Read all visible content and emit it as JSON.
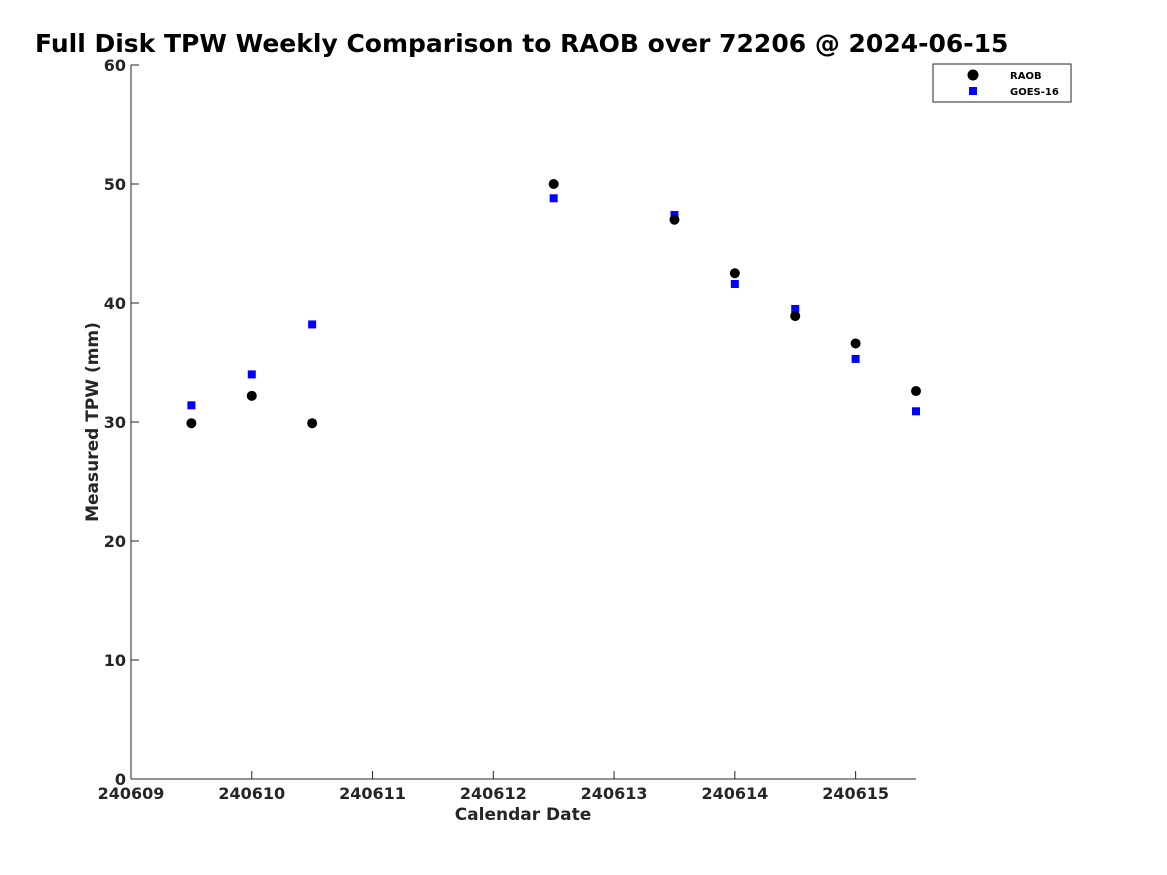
{
  "chart_data": {
    "type": "scatter",
    "title": "Full Disk TPW Weekly Comparison to RAOB over 72206 @ 2024-06-15",
    "xlabel": "Calendar Date",
    "ylabel": "Measured TPW (mm)",
    "x_ticks": [
      "240609",
      "240610",
      "240611",
      "240612",
      "240613",
      "240614",
      "240615"
    ],
    "y_ticks": [
      "0",
      "10",
      "20",
      "30",
      "40",
      "50",
      "60"
    ],
    "xlim": [
      "2024-06-09",
      "2024-06-15 12:00"
    ],
    "ylim": [
      0,
      60
    ],
    "grid": false,
    "legend": "top-right",
    "series": [
      {
        "name": "RAOB",
        "marker": "circle",
        "color": "#000000",
        "points": [
          {
            "x": "2024-06-09 12:00",
            "y": 29.9
          },
          {
            "x": "2024-06-10 00:00",
            "y": 32.2
          },
          {
            "x": "2024-06-10 12:00",
            "y": 29.9
          },
          {
            "x": "2024-06-12 12:00",
            "y": 50.0
          },
          {
            "x": "2024-06-13 12:00",
            "y": 47.0
          },
          {
            "x": "2024-06-14 00:00",
            "y": 42.5
          },
          {
            "x": "2024-06-14 12:00",
            "y": 38.9
          },
          {
            "x": "2024-06-15 00:00",
            "y": 36.6
          },
          {
            "x": "2024-06-15 12:00",
            "y": 32.6
          }
        ]
      },
      {
        "name": "GOES-16",
        "marker": "square",
        "color": "#0000ff",
        "points": [
          {
            "x": "2024-06-09 12:00",
            "y": 31.4
          },
          {
            "x": "2024-06-10 00:00",
            "y": 34.0
          },
          {
            "x": "2024-06-10 12:00",
            "y": 38.2
          },
          {
            "x": "2024-06-12 12:00",
            "y": 48.8
          },
          {
            "x": "2024-06-13 12:00",
            "y": 47.4
          },
          {
            "x": "2024-06-14 00:00",
            "y": 41.6
          },
          {
            "x": "2024-06-14 12:00",
            "y": 39.5
          },
          {
            "x": "2024-06-15 00:00",
            "y": 35.3
          },
          {
            "x": "2024-06-15 12:00",
            "y": 30.9
          }
        ]
      }
    ]
  }
}
